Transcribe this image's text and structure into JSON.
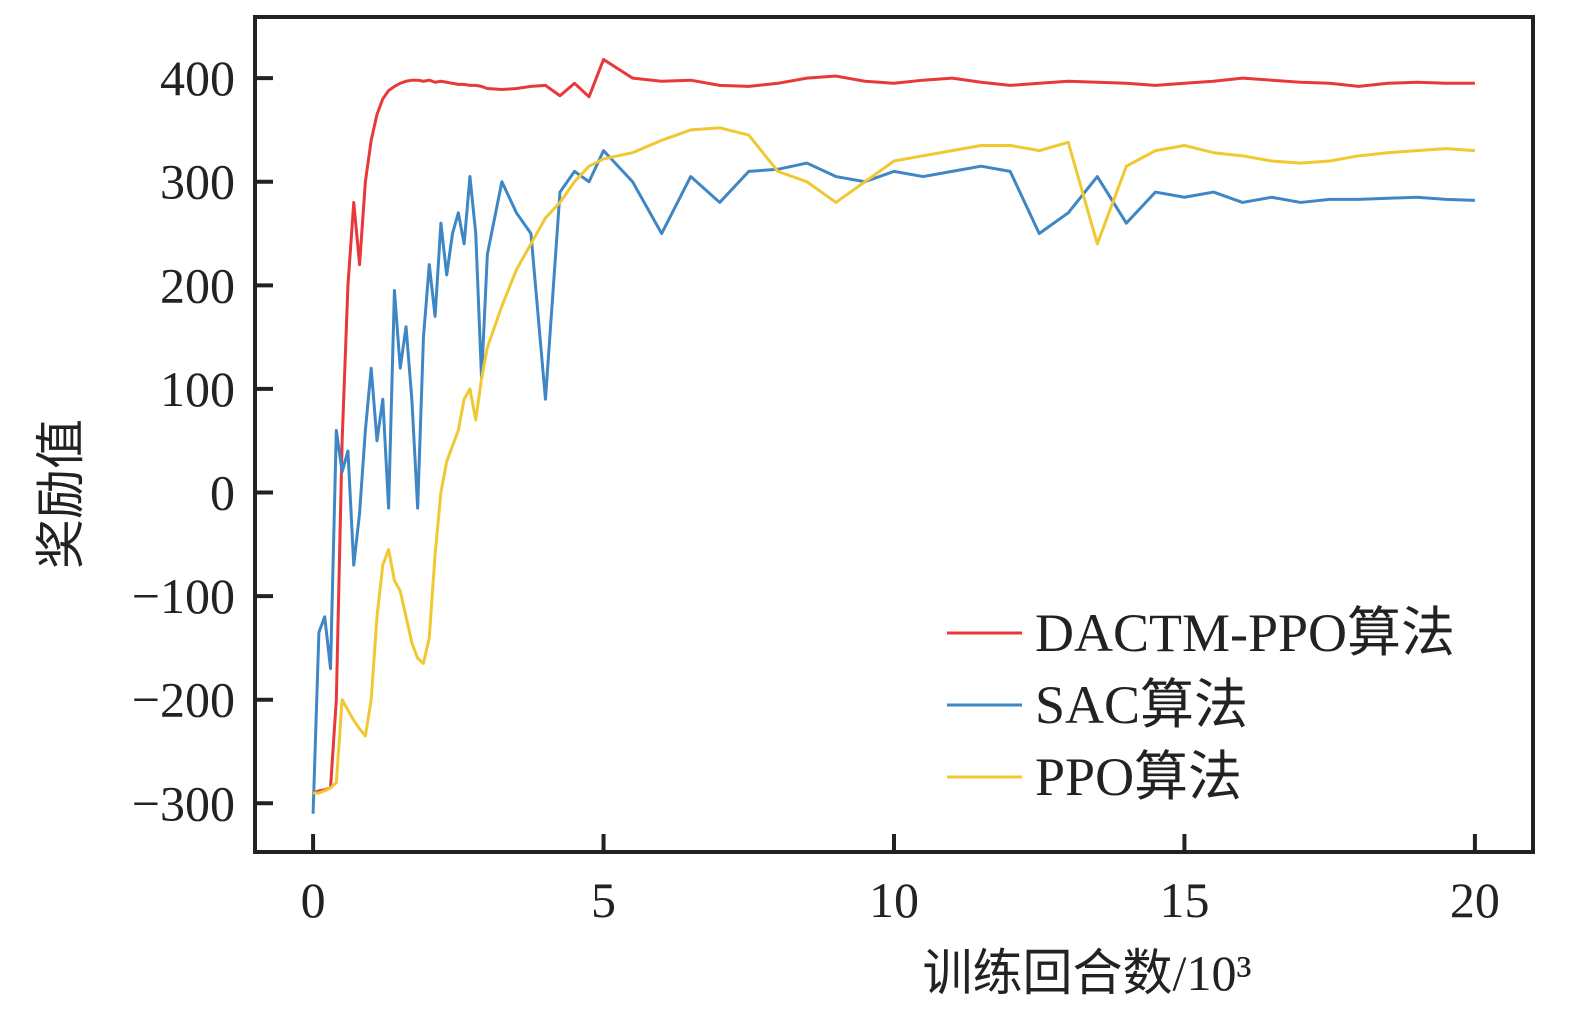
{
  "chart_data": {
    "type": "line",
    "x_label": "训练回合数/10³",
    "y_label": "奖励值",
    "xlim": [
      -1,
      21
    ],
    "ylim": [
      -347,
      459
    ],
    "xticks": [
      0,
      5,
      10,
      15,
      20
    ],
    "yticks": [
      {
        "value": -300,
        "label": "−300"
      },
      {
        "value": -200,
        "label": "−200"
      },
      {
        "value": -100,
        "label": "−100"
      },
      0,
      100,
      200,
      300,
      400
    ],
    "legend": "lower right",
    "x": [
      0,
      0.1,
      0.2,
      0.3,
      0.4,
      0.5,
      0.6,
      0.7,
      0.8,
      0.9,
      1.0,
      1.1,
      1.2,
      1.3,
      1.4,
      1.5,
      1.6,
      1.7,
      1.8,
      1.9,
      2.0,
      2.1,
      2.2,
      2.3,
      2.4,
      2.5,
      2.6,
      2.7,
      2.8,
      2.9,
      3.0,
      3.25,
      3.5,
      3.75,
      4.0,
      4.25,
      4.5,
      4.75,
      5.0,
      5.5,
      6,
      6.5,
      7,
      7.5,
      8,
      8.5,
      9,
      9.5,
      10,
      10.5,
      11,
      11.5,
      12,
      12.5,
      13,
      13.5,
      14,
      14.5,
      15,
      15.5,
      16,
      16.5,
      17,
      17.5,
      18,
      18.5,
      19,
      19.5,
      20
    ],
    "series": [
      {
        "name": "DACTM-PPO算法",
        "color": "#e8383a",
        "values": [
          -290,
          -288,
          -287,
          -285,
          -200,
          50,
          200,
          280,
          220,
          300,
          340,
          365,
          380,
          388,
          392,
          395,
          397,
          398,
          398,
          397,
          398,
          396,
          397,
          396,
          395,
          394,
          394,
          393,
          393,
          392,
          390,
          389,
          390,
          392,
          393,
          383,
          395,
          382,
          418,
          400,
          397,
          398,
          393,
          392,
          395,
          400,
          402,
          397,
          395,
          398,
          400,
          396,
          393,
          395,
          397,
          396,
          395,
          393,
          395,
          397,
          400,
          398,
          396,
          395,
          392,
          395,
          396,
          395,
          395
        ]
      },
      {
        "name": "SAC算法",
        "color": "#3f86c4",
        "values": [
          -310,
          -135,
          -120,
          -170,
          60,
          20,
          40,
          -70,
          -20,
          60,
          120,
          50,
          90,
          -15,
          195,
          120,
          160,
          90,
          -15,
          150,
          220,
          170,
          260,
          210,
          250,
          270,
          240,
          305,
          250,
          110,
          230,
          300,
          270,
          250,
          90,
          290,
          310,
          300,
          330,
          300,
          250,
          305,
          280,
          310,
          312,
          318,
          305,
          300,
          310,
          305,
          310,
          315,
          310,
          250,
          270,
          305,
          260,
          290,
          285,
          290,
          280,
          285,
          280,
          283,
          283,
          284,
          285,
          283,
          282
        ]
      },
      {
        "name": "PPO算法",
        "color": "#f0c832",
        "values": [
          -290,
          -290,
          -288,
          -285,
          -280,
          -200,
          -210,
          -220,
          -228,
          -235,
          -200,
          -120,
          -70,
          -55,
          -85,
          -95,
          -120,
          -145,
          -160,
          -165,
          -140,
          -60,
          0,
          30,
          45,
          60,
          90,
          100,
          70,
          110,
          140,
          180,
          215,
          240,
          265,
          280,
          300,
          315,
          322,
          328,
          340,
          350,
          352,
          345,
          310,
          300,
          280,
          300,
          320,
          325,
          330,
          335,
          335,
          330,
          338,
          240,
          315,
          330,
          335,
          328,
          325,
          320,
          318,
          320,
          325,
          328,
          330,
          332,
          330
        ]
      }
    ]
  }
}
